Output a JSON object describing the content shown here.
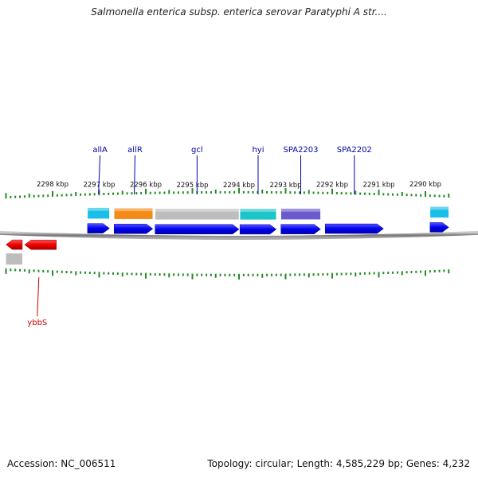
{
  "title": "Salmonella enterica subsp. enterica serovar Paratyphi A str....",
  "footer": {
    "accession": "Accession: NC_006511",
    "info": "Topology: circular; Length: 4,585,229 bp; Genes: 4,232"
  },
  "colors": {
    "forward_cds": "#0000ee",
    "reverse_cds": "#ee0000",
    "forward_label": "#0000aa",
    "reverse_label": "#cc0000",
    "tick": "#228b22",
    "backbone": "#808080"
  },
  "view": {
    "start_kbp": 2289.5,
    "end_kbp": 2299.0,
    "units": "kbp"
  },
  "scale_labels": [
    "2298 kbp",
    "2297 kbp",
    "2296 kbp",
    "2295 kbp",
    "2294 kbp",
    "2293 kbp",
    "2292 kbp",
    "2291 kbp",
    "2290 kbp"
  ],
  "scale_label_kbp": [
    2298,
    2297,
    2296,
    2295,
    2294,
    2293,
    2292,
    2291,
    2290
  ],
  "forward_genes": [
    {
      "name": "allA",
      "start_kbp": 2297.25,
      "end_kbp": 2296.78,
      "category_color": "#19bfe8"
    },
    {
      "name": "allR",
      "start_kbp": 2296.68,
      "end_kbp": 2295.85,
      "category_color": "#f58a16"
    },
    {
      "name": "gcl",
      "start_kbp": 2295.8,
      "end_kbp": 2294.0,
      "category_color": "#bdbdbd"
    },
    {
      "name": "hyi",
      "start_kbp": 2293.98,
      "end_kbp": 2293.2,
      "category_color": "#1cc5c8"
    },
    {
      "name": "SPA2203",
      "start_kbp": 2293.1,
      "end_kbp": 2292.25,
      "category_color": "#6a5acd"
    },
    {
      "name": "SPA2202",
      "start_kbp": 2292.15,
      "end_kbp": 2290.9,
      "category_color": ""
    },
    {
      "name": "",
      "start_kbp": 2289.9,
      "end_kbp": 2289.5,
      "category_color": "#19bfe8"
    }
  ],
  "reverse_genes": [
    {
      "name": "",
      "start_kbp": 2299.0,
      "end_kbp": 2298.65,
      "category_color": "#bdbdbd"
    },
    {
      "name": "ybbS",
      "start_kbp": 2298.6,
      "end_kbp": 2297.92,
      "category_color": ""
    }
  ]
}
